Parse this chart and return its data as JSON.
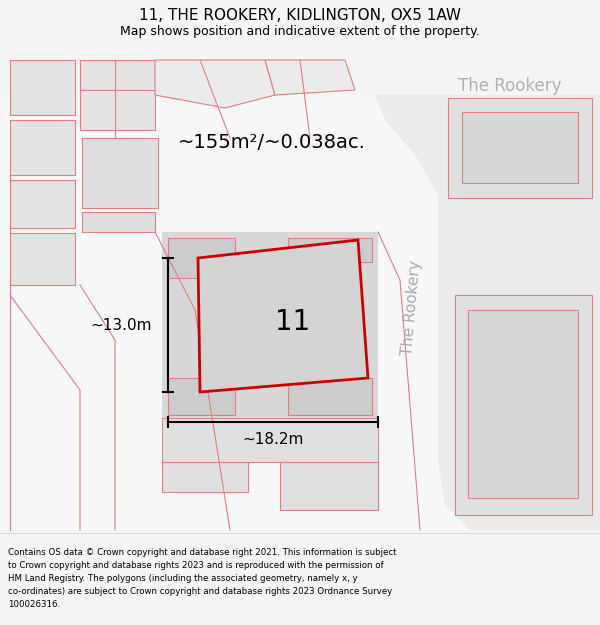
{
  "title": "11, THE ROOKERY, KIDLINGTON, OX5 1AW",
  "subtitle": "Map shows position and indicative extent of the property.",
  "footer_lines": [
    "Contains OS data © Crown copyright and database right 2021. This information is subject",
    "to Crown copyright and database rights 2023 and is reproduced with the permission of",
    "HM Land Registry. The polygons (including the associated geometry, namely x, y",
    "co-ordinates) are subject to Crown copyright and database rights 2023 Ordnance Survey",
    "100026316."
  ],
  "area_label": "~155m²/~0.038ac.",
  "width_label": "~18.2m",
  "height_label": "~13.0m",
  "plot_number": "11",
  "street_label_rotated": "The Rookery",
  "street_label_top": "The Rookery",
  "bg_color": "#f5f5f5",
  "plot_outline": "#cc0000",
  "pink_line": "#e08080"
}
